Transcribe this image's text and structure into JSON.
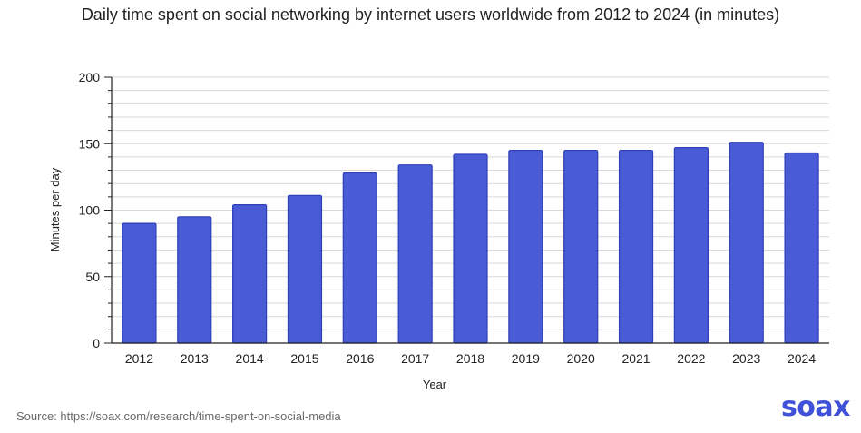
{
  "chart_data": {
    "type": "bar",
    "title": "Daily time spent on social networking by internet users worldwide from 2012 to 2024 (in minutes)",
    "xlabel": "Year",
    "ylabel": "Minutes per day",
    "categories": [
      "2012",
      "2013",
      "2014",
      "2015",
      "2016",
      "2017",
      "2018",
      "2019",
      "2020",
      "2021",
      "2022",
      "2023",
      "2024"
    ],
    "values": [
      90,
      95,
      104,
      111,
      128,
      134,
      142,
      145,
      145,
      145,
      147,
      151,
      143
    ],
    "ylim": [
      0,
      200
    ],
    "yticks": [
      "0",
      "50",
      "100",
      "150",
      "200"
    ],
    "grid": true,
    "bar_color": "#4a5bd6",
    "grid_color": "#d9d9d9"
  },
  "footer": {
    "source": "Source: https://soax.com/research/time-spent-on-social-media",
    "brand": "soax",
    "brand_color": "#3f51d8"
  }
}
